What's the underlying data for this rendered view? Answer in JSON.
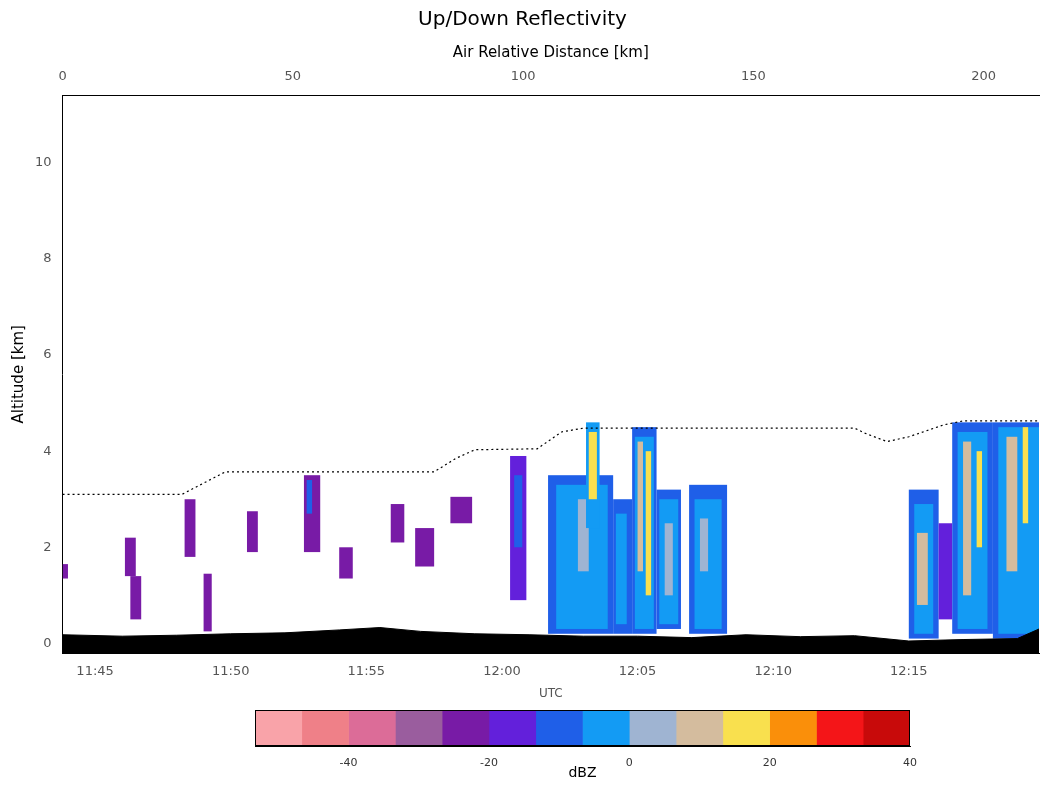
{
  "chart_data": {
    "type": "curtain",
    "title": "Up/Down Reflectivity",
    "x_label": "UTC",
    "y_label": "Altitude [km]",
    "x2_label": "Air Relative Distance [km]",
    "xlim": [
      703.8,
      739.8
    ],
    "xticks": [
      {
        "value": 705,
        "label": "11:45"
      },
      {
        "value": 710,
        "label": "11:50"
      },
      {
        "value": 715,
        "label": "11:55"
      },
      {
        "value": 720,
        "label": "12:00"
      },
      {
        "value": 725,
        "label": "12:05"
      },
      {
        "value": 730,
        "label": "12:10"
      },
      {
        "value": 735,
        "label": "12:15"
      }
    ],
    "x2lim": [
      0,
      212
    ],
    "x2ticks": [
      0,
      50,
      100,
      150,
      200
    ],
    "ylim": [
      -0.2,
      11.4
    ],
    "yticks": [
      0,
      2,
      4,
      6,
      8,
      10
    ],
    "grid": false,
    "legend": false,
    "echoes": [
      {
        "t0": 703.8,
        "t1": 704.0,
        "alt0": 1.35,
        "alt1": 1.65,
        "dbz": -22
      },
      {
        "t0": 706.1,
        "t1": 706.5,
        "alt0": 1.4,
        "alt1": 2.2,
        "dbz": -22
      },
      {
        "t0": 706.3,
        "t1": 706.7,
        "alt0": 0.5,
        "alt1": 1.4,
        "dbz": -22
      },
      {
        "t0": 708.3,
        "t1": 708.7,
        "alt0": 1.8,
        "alt1": 3.0,
        "dbz": -22
      },
      {
        "t0": 709.0,
        "t1": 709.3,
        "alt0": 0.25,
        "alt1": 1.45,
        "dbz": -22
      },
      {
        "t0": 710.6,
        "t1": 711.0,
        "alt0": 1.9,
        "alt1": 2.75,
        "dbz": -22
      },
      {
        "t0": 712.7,
        "t1": 713.3,
        "alt0": 1.9,
        "alt1": 3.5,
        "dbz": -22
      },
      {
        "t0": 712.8,
        "t1": 713.0,
        "alt0": 2.7,
        "alt1": 3.4,
        "dbz": -12
      },
      {
        "t0": 714.0,
        "t1": 714.5,
        "alt0": 1.35,
        "alt1": 2.0,
        "dbz": -24
      },
      {
        "t0": 715.9,
        "t1": 716.4,
        "alt0": 2.1,
        "alt1": 2.9,
        "dbz": -22
      },
      {
        "t0": 716.8,
        "t1": 717.5,
        "alt0": 1.6,
        "alt1": 2.4,
        "dbz": -22
      },
      {
        "t0": 718.1,
        "t1": 718.9,
        "alt0": 2.5,
        "alt1": 3.05,
        "dbz": -22
      },
      {
        "t0": 720.3,
        "t1": 720.9,
        "alt0": 0.9,
        "alt1": 3.9,
        "dbz": -18
      },
      {
        "t0": 720.45,
        "t1": 720.75,
        "alt0": 2.0,
        "alt1": 3.5,
        "dbz": -10
      },
      {
        "t0": 721.7,
        "t1": 724.1,
        "alt0": 0.2,
        "alt1": 3.5,
        "dbz": -12
      },
      {
        "t0": 722.0,
        "t1": 723.9,
        "alt0": 0.3,
        "alt1": 3.3,
        "dbz": -4
      },
      {
        "t0": 722.8,
        "t1": 723.2,
        "alt0": 1.5,
        "alt1": 3.0,
        "dbz": 3
      },
      {
        "t0": 723.1,
        "t1": 723.6,
        "alt0": 2.4,
        "alt1": 4.6,
        "dbz": -4
      },
      {
        "t0": 723.2,
        "t1": 723.5,
        "alt0": 3.0,
        "alt1": 4.4,
        "dbz": 15
      },
      {
        "t0": 724.1,
        "t1": 724.8,
        "alt0": 0.2,
        "alt1": 3.0,
        "dbz": -12
      },
      {
        "t0": 724.2,
        "t1": 724.6,
        "alt0": 0.4,
        "alt1": 2.7,
        "dbz": -4
      },
      {
        "t0": 724.8,
        "t1": 725.7,
        "alt0": 0.2,
        "alt1": 4.5,
        "dbz": -12
      },
      {
        "t0": 724.9,
        "t1": 725.6,
        "alt0": 0.3,
        "alt1": 4.3,
        "dbz": -3
      },
      {
        "t0": 725.0,
        "t1": 725.2,
        "alt0": 1.5,
        "alt1": 4.2,
        "dbz": 10
      },
      {
        "t0": 725.3,
        "t1": 725.5,
        "alt0": 1.0,
        "alt1": 4.0,
        "dbz": 15
      },
      {
        "t0": 725.7,
        "t1": 726.6,
        "alt0": 0.3,
        "alt1": 3.2,
        "dbz": -12
      },
      {
        "t0": 725.8,
        "t1": 726.5,
        "alt0": 0.4,
        "alt1": 3.0,
        "dbz": -3
      },
      {
        "t0": 726.0,
        "t1": 726.3,
        "alt0": 1.0,
        "alt1": 2.5,
        "dbz": 4
      },
      {
        "t0": 726.9,
        "t1": 728.3,
        "alt0": 0.2,
        "alt1": 3.3,
        "dbz": -12
      },
      {
        "t0": 727.1,
        "t1": 728.1,
        "alt0": 0.3,
        "alt1": 3.0,
        "dbz": -4
      },
      {
        "t0": 727.3,
        "t1": 727.6,
        "alt0": 1.5,
        "alt1": 2.6,
        "dbz": 4
      },
      {
        "t0": 735.0,
        "t1": 736.1,
        "alt0": 0.1,
        "alt1": 3.2,
        "dbz": -12
      },
      {
        "t0": 735.2,
        "t1": 735.9,
        "alt0": 0.2,
        "alt1": 2.9,
        "dbz": -3
      },
      {
        "t0": 735.3,
        "t1": 735.7,
        "alt0": 0.8,
        "alt1": 2.3,
        "dbz": 10
      },
      {
        "t0": 736.1,
        "t1": 736.6,
        "alt0": 0.5,
        "alt1": 2.5,
        "dbz": -14
      },
      {
        "t0": 736.6,
        "t1": 738.1,
        "alt0": 0.2,
        "alt1": 4.6,
        "dbz": -12
      },
      {
        "t0": 736.8,
        "t1": 737.9,
        "alt0": 0.3,
        "alt1": 4.4,
        "dbz": -3
      },
      {
        "t0": 737.0,
        "t1": 737.3,
        "alt0": 1.0,
        "alt1": 4.2,
        "dbz": 10
      },
      {
        "t0": 737.5,
        "t1": 737.7,
        "alt0": 2.0,
        "alt1": 4.0,
        "dbz": 16
      },
      {
        "t0": 738.1,
        "t1": 739.8,
        "alt0": 0.1,
        "alt1": 4.6,
        "dbz": -12
      },
      {
        "t0": 738.3,
        "t1": 739.8,
        "alt0": 0.2,
        "alt1": 4.5,
        "dbz": -3
      },
      {
        "t0": 738.6,
        "t1": 739.0,
        "alt0": 1.5,
        "alt1": 4.3,
        "dbz": 10
      },
      {
        "t0": 739.2,
        "t1": 739.4,
        "alt0": 2.5,
        "alt1": 4.5,
        "dbz": 16
      }
    ],
    "flight_track": {
      "x": [
        703.8,
        708.2,
        709.8,
        717.5,
        718.3,
        719.0,
        721.3,
        722.2,
        723.0,
        733.0,
        733.4,
        734.2,
        735.0,
        736.3,
        737.0,
        739.8
      ],
      "values": [
        3.1,
        3.1,
        3.57,
        3.57,
        3.85,
        4.03,
        4.05,
        4.4,
        4.48,
        4.48,
        4.37,
        4.2,
        4.3,
        4.55,
        4.63,
        4.63
      ],
      "color": "#000000",
      "line_style": "dotted"
    },
    "surface": {
      "x": [
        703.8,
        706,
        708,
        710,
        712,
        714,
        715.5,
        717,
        719,
        721,
        723,
        725,
        727,
        729,
        731,
        733,
        735,
        737,
        739,
        739.8
      ],
      "values": [
        0.18,
        0.15,
        0.17,
        0.2,
        0.22,
        0.28,
        0.33,
        0.25,
        0.2,
        0.18,
        0.15,
        0.15,
        0.12,
        0.18,
        0.14,
        0.16,
        0.05,
        0.08,
        0.1,
        0.3
      ],
      "color": "#000000"
    },
    "colorbar": {
      "label": "dBZ",
      "bounds": [
        -53.33,
        -46.67,
        -40,
        -33.33,
        -26.67,
        -20,
        -13.33,
        -6.67,
        0,
        6.67,
        13.33,
        20,
        26.67,
        33.33,
        40
      ],
      "colors": [
        "#f9a3a9",
        "#ef8088",
        "#dc6c98",
        "#9a5d9e",
        "#781ba6",
        "#6320db",
        "#1f5fe8",
        "#139bf4",
        "#9fb4d2",
        "#d4bc9e",
        "#f9e04e",
        "#fa8f0a",
        "#f41518",
        "#c80a0a"
      ],
      "ticks": [
        -40,
        -20,
        0,
        20,
        40
      ]
    }
  }
}
